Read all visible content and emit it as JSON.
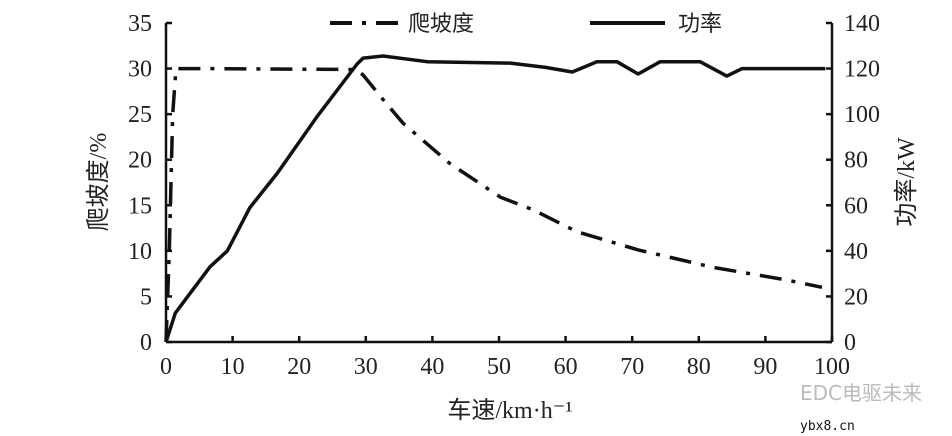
{
  "chart_data": {
    "type": "line",
    "xlabel": "车速/km·h⁻¹",
    "ylabel_left": "爬坡度/%",
    "ylabel_right": "功率/kW",
    "xlim": [
      0,
      100
    ],
    "ylim_left": [
      0,
      35
    ],
    "ylim_right": [
      0,
      140
    ],
    "xticks": [
      "0",
      "10",
      "20",
      "30",
      "40",
      "50",
      "60",
      "70",
      "80",
      "90",
      "100"
    ],
    "yticks_left": [
      "0",
      "5",
      "10",
      "15",
      "20",
      "25",
      "30",
      "35"
    ],
    "yticks_right": [
      "0",
      "20",
      "40",
      "60",
      "80",
      "100",
      "120",
      "140"
    ],
    "grid": false,
    "legend_position": "top",
    "series": [
      {
        "name": "爬坡度",
        "axis": "left",
        "style": "dash-dot",
        "x": [
          0,
          0.5,
          1.0,
          1.5,
          5,
          28.5,
          29.6,
          32.6,
          35.6,
          42.6,
          50.2,
          55.1,
          61.7,
          70.9,
          82.1,
          93.2,
          98.5
        ],
        "y": [
          0,
          10,
          25,
          30,
          30,
          29.9,
          29.3,
          26.6,
          24.0,
          19.6,
          15.9,
          14.5,
          12.1,
          10.1,
          8.2,
          6.8,
          6.0
        ]
      },
      {
        "name": "功率",
        "axis": "right",
        "style": "solid",
        "x": [
          0,
          1.4,
          6.6,
          9.2,
          12.6,
          16.7,
          22.7,
          28.7,
          29.6,
          32.6,
          39.2,
          51.7,
          57,
          61,
          64.7,
          67.7,
          70.9,
          74.2,
          80.2,
          84.2,
          86.5,
          99
        ],
        "y": [
          0,
          12.7,
          33,
          40,
          59,
          74,
          99,
          122,
          124.6,
          125.5,
          123,
          122.4,
          120.5,
          118.5,
          123,
          123,
          117.6,
          123,
          123,
          116.7,
          120,
          120
        ]
      }
    ]
  },
  "watermark": {
    "text": "EDC电驱未来",
    "site": "ybx8.cn"
  }
}
